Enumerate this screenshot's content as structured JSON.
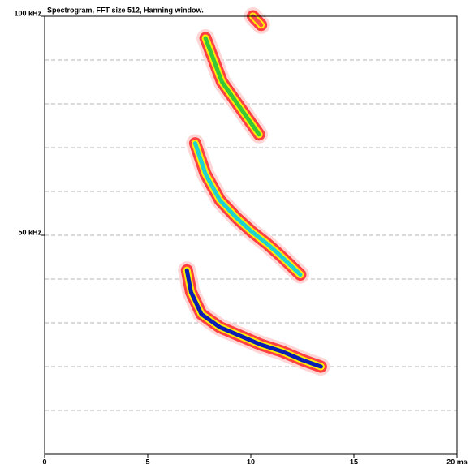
{
  "chart_data": {
    "type": "spectrogram",
    "title": "Spectrogram, FFT size 512, Hanning window.",
    "xlim": [
      0,
      20
    ],
    "xticks": [
      0,
      5,
      10,
      15,
      {
        "value": 20,
        "label": "20 ms"
      }
    ],
    "ylim": [
      0,
      100
    ],
    "yticks": [
      {
        "value": 50,
        "label": "50 kHz"
      },
      {
        "value": 100,
        "label": "100 kHz"
      }
    ],
    "grid_yticks": [
      10,
      20,
      30,
      40,
      50,
      60,
      70,
      80,
      90
    ],
    "grid": true,
    "series": [
      {
        "color": "#0a1eb4",
        "x": [
          6.9,
          7.1,
          7.6,
          8.5,
          9.5,
          10.5,
          11.5,
          12.5,
          13.4
        ],
        "values": [
          42,
          37,
          32,
          29,
          27,
          25,
          23.5,
          21.5,
          20
        ]
      },
      {
        "color": "#1ed2d2",
        "x": [
          7.3,
          7.8,
          8.5,
          9.3,
          10,
          10.8,
          11.4,
          12.4
        ],
        "values": [
          71,
          64,
          58,
          54,
          51,
          48,
          45.5,
          41
        ]
      },
      {
        "color": "#37c837",
        "x": [
          7.8,
          8.2,
          8.6,
          9.2,
          9.8,
          10.4
        ],
        "values": [
          95,
          90,
          85,
          81,
          77,
          73
        ]
      },
      {
        "color": "#ff5050",
        "x": [
          10.1,
          10.5
        ],
        "values": [
          100,
          98
        ]
      }
    ]
  }
}
